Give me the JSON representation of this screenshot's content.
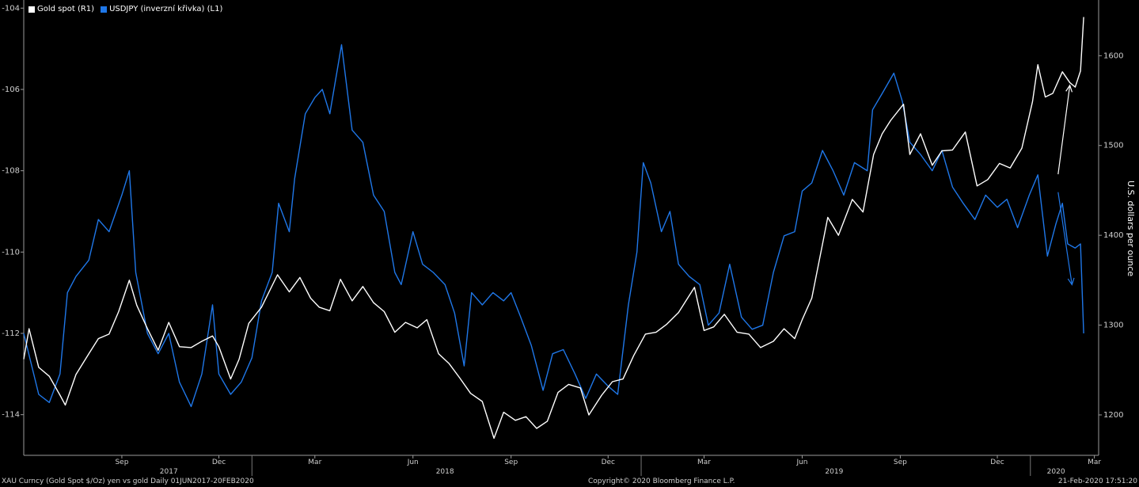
{
  "chart_data": {
    "type": "line",
    "title": "",
    "legend": [
      {
        "name": "Gold spot (R1)",
        "color": "#ffffff"
      },
      {
        "name": "USDJPY (inverzní křivka) (L1)",
        "color": "#1f77e8"
      }
    ],
    "left_axis": {
      "ticks": [
        -104,
        -106,
        -108,
        -110,
        -112,
        -114
      ],
      "tick_labels": [
        "-104",
        "-106",
        "-108",
        "-110",
        "-112",
        "-114"
      ],
      "ylim": [
        -115,
        -103.8
      ]
    },
    "right_axis": {
      "label": "U.S. dollars per ounce",
      "ticks": [
        1200,
        1300,
        1400,
        1500,
        1600
      ],
      "ylim": [
        1155,
        1662
      ]
    },
    "x_axis": {
      "month_ticks": [
        "Sep",
        "Dec",
        "Mar",
        "Jun",
        "Sep",
        "Dec",
        "Mar",
        "Jun",
        "Sep",
        "Dec",
        "Mar"
      ],
      "month_dates": [
        "2017-09-01",
        "2017-12-01",
        "2018-03-01",
        "2018-06-01",
        "2018-09-01",
        "2018-12-01",
        "2019-03-01",
        "2019-06-01",
        "2019-09-01",
        "2019-12-01",
        "2020-03-01"
      ],
      "year_labels": [
        "2017",
        "2018",
        "2019",
        "2020"
      ],
      "year_dates": [
        "2017-10-15",
        "2018-07-01",
        "2019-07-01",
        "2020-01-25"
      ],
      "start": "2017-06-01",
      "end": "2020-03-05"
    },
    "series": [
      {
        "name": "USDJPY (inverzní křivka) (L1)",
        "axis": "left",
        "color": "#1f77e8",
        "points": [
          [
            "2017-06-01",
            -112.0
          ],
          [
            "2017-06-15",
            -113.5
          ],
          [
            "2017-06-25",
            -113.7
          ],
          [
            "2017-07-05",
            -113.0
          ],
          [
            "2017-07-12",
            -111.0
          ],
          [
            "2017-07-20",
            -110.6
          ],
          [
            "2017-08-01",
            -110.2
          ],
          [
            "2017-08-10",
            -109.2
          ],
          [
            "2017-08-20",
            -109.5
          ],
          [
            "2017-09-01",
            -108.6
          ],
          [
            "2017-09-08",
            -108.0
          ],
          [
            "2017-09-14",
            -110.5
          ],
          [
            "2017-09-25",
            -112.0
          ],
          [
            "2017-10-05",
            -112.5
          ],
          [
            "2017-10-15",
            -112.0
          ],
          [
            "2017-10-25",
            -113.2
          ],
          [
            "2017-11-05",
            -113.8
          ],
          [
            "2017-11-15",
            -113.0
          ],
          [
            "2017-11-25",
            -111.3
          ],
          [
            "2017-12-01",
            -113.0
          ],
          [
            "2017-12-12",
            -113.5
          ],
          [
            "2017-12-22",
            -113.2
          ],
          [
            "2018-01-01",
            -112.6
          ],
          [
            "2018-01-10",
            -111.2
          ],
          [
            "2018-01-20",
            -110.5
          ],
          [
            "2018-01-26",
            -108.8
          ],
          [
            "2018-02-05",
            -109.5
          ],
          [
            "2018-02-10",
            -108.2
          ],
          [
            "2018-02-20",
            -106.6
          ],
          [
            "2018-03-01",
            -106.2
          ],
          [
            "2018-03-08",
            -106.0
          ],
          [
            "2018-03-15",
            -106.6
          ],
          [
            "2018-03-26",
            -104.9
          ],
          [
            "2018-04-05",
            -107.0
          ],
          [
            "2018-04-15",
            -107.3
          ],
          [
            "2018-04-25",
            -108.6
          ],
          [
            "2018-05-05",
            -109.0
          ],
          [
            "2018-05-15",
            -110.5
          ],
          [
            "2018-05-21",
            -110.8
          ],
          [
            "2018-06-01",
            -109.5
          ],
          [
            "2018-06-10",
            -110.3
          ],
          [
            "2018-06-20",
            -110.5
          ],
          [
            "2018-07-01",
            -110.8
          ],
          [
            "2018-07-10",
            -111.5
          ],
          [
            "2018-07-19",
            -112.8
          ],
          [
            "2018-07-26",
            -111.0
          ],
          [
            "2018-08-05",
            -111.3
          ],
          [
            "2018-08-15",
            -111.0
          ],
          [
            "2018-08-25",
            -111.2
          ],
          [
            "2018-09-01",
            -111.0
          ],
          [
            "2018-09-10",
            -111.6
          ],
          [
            "2018-09-20",
            -112.3
          ],
          [
            "2018-10-01",
            -113.4
          ],
          [
            "2018-10-10",
            -112.5
          ],
          [
            "2018-10-20",
            -112.4
          ],
          [
            "2018-10-31",
            -113.0
          ],
          [
            "2018-11-10",
            -113.6
          ],
          [
            "2018-11-20",
            -113.0
          ],
          [
            "2018-12-01",
            -113.3
          ],
          [
            "2018-12-10",
            -113.5
          ],
          [
            "2018-12-20",
            -111.3
          ],
          [
            "2018-12-28",
            -110.0
          ],
          [
            "2019-01-03",
            -107.8
          ],
          [
            "2019-01-10",
            -108.3
          ],
          [
            "2019-01-20",
            -109.5
          ],
          [
            "2019-01-28",
            -109.0
          ],
          [
            "2019-02-05",
            -110.3
          ],
          [
            "2019-02-15",
            -110.6
          ],
          [
            "2019-02-25",
            -110.8
          ],
          [
            "2019-03-05",
            -111.8
          ],
          [
            "2019-03-15",
            -111.5
          ],
          [
            "2019-03-25",
            -110.3
          ],
          [
            "2019-04-05",
            -111.6
          ],
          [
            "2019-04-15",
            -111.9
          ],
          [
            "2019-04-25",
            -111.8
          ],
          [
            "2019-05-05",
            -110.5
          ],
          [
            "2019-05-15",
            -109.6
          ],
          [
            "2019-05-25",
            -109.5
          ],
          [
            "2019-06-01",
            -108.5
          ],
          [
            "2019-06-10",
            -108.3
          ],
          [
            "2019-06-20",
            -107.5
          ],
          [
            "2019-06-30",
            -108.0
          ],
          [
            "2019-07-10",
            -108.6
          ],
          [
            "2019-07-20",
            -107.8
          ],
          [
            "2019-08-01",
            -108.0
          ],
          [
            "2019-08-06",
            -106.5
          ],
          [
            "2019-08-15",
            -106.1
          ],
          [
            "2019-08-26",
            -105.6
          ],
          [
            "2019-09-03",
            -106.3
          ],
          [
            "2019-09-10",
            -107.3
          ],
          [
            "2019-09-20",
            -107.6
          ],
          [
            "2019-10-01",
            -108.0
          ],
          [
            "2019-10-10",
            -107.5
          ],
          [
            "2019-10-20",
            -108.4
          ],
          [
            "2019-10-30",
            -108.8
          ],
          [
            "2019-11-10",
            -109.2
          ],
          [
            "2019-11-20",
            -108.6
          ],
          [
            "2019-12-01",
            -108.9
          ],
          [
            "2019-12-10",
            -108.7
          ],
          [
            "2019-12-20",
            -109.4
          ],
          [
            "2019-12-31",
            -108.6
          ],
          [
            "2020-01-08",
            -108.1
          ],
          [
            "2020-01-17",
            -110.1
          ],
          [
            "2020-01-25",
            -109.3
          ],
          [
            "2020-01-31",
            -108.8
          ],
          [
            "2020-02-05",
            -109.8
          ],
          [
            "2020-02-12",
            -109.9
          ],
          [
            "2020-02-17",
            -109.8
          ],
          [
            "2020-02-20",
            -112.0
          ]
        ]
      },
      {
        "name": "Gold spot (R1)",
        "axis": "right",
        "color": "#ffffff",
        "points": [
          [
            "2017-06-01",
            1262
          ],
          [
            "2017-06-06",
            1296
          ],
          [
            "2017-06-15",
            1253
          ],
          [
            "2017-06-25",
            1243
          ],
          [
            "2017-07-05",
            1222
          ],
          [
            "2017-07-10",
            1211
          ],
          [
            "2017-07-20",
            1245
          ],
          [
            "2017-08-01",
            1268
          ],
          [
            "2017-08-10",
            1285
          ],
          [
            "2017-08-20",
            1290
          ],
          [
            "2017-08-29",
            1315
          ],
          [
            "2017-09-08",
            1350
          ],
          [
            "2017-09-15",
            1322
          ],
          [
            "2017-09-25",
            1296
          ],
          [
            "2017-10-05",
            1272
          ],
          [
            "2017-10-15",
            1303
          ],
          [
            "2017-10-25",
            1276
          ],
          [
            "2017-11-05",
            1275
          ],
          [
            "2017-11-15",
            1282
          ],
          [
            "2017-11-25",
            1288
          ],
          [
            "2017-12-01",
            1276
          ],
          [
            "2017-12-12",
            1240
          ],
          [
            "2017-12-20",
            1262
          ],
          [
            "2017-12-29",
            1302
          ],
          [
            "2018-01-10",
            1320
          ],
          [
            "2018-01-25",
            1356
          ],
          [
            "2018-02-05",
            1337
          ],
          [
            "2018-02-15",
            1353
          ],
          [
            "2018-02-25",
            1330
          ],
          [
            "2018-03-05",
            1320
          ],
          [
            "2018-03-15",
            1316
          ],
          [
            "2018-03-25",
            1351
          ],
          [
            "2018-04-05",
            1327
          ],
          [
            "2018-04-15",
            1343
          ],
          [
            "2018-04-25",
            1325
          ],
          [
            "2018-05-05",
            1315
          ],
          [
            "2018-05-15",
            1292
          ],
          [
            "2018-05-25",
            1303
          ],
          [
            "2018-06-05",
            1297
          ],
          [
            "2018-06-14",
            1306
          ],
          [
            "2018-06-25",
            1268
          ],
          [
            "2018-07-05",
            1257
          ],
          [
            "2018-07-15",
            1241
          ],
          [
            "2018-07-25",
            1224
          ],
          [
            "2018-08-05",
            1215
          ],
          [
            "2018-08-16",
            1174
          ],
          [
            "2018-08-25",
            1203
          ],
          [
            "2018-09-05",
            1194
          ],
          [
            "2018-09-15",
            1198
          ],
          [
            "2018-09-25",
            1185
          ],
          [
            "2018-10-05",
            1193
          ],
          [
            "2018-10-15",
            1225
          ],
          [
            "2018-10-25",
            1234
          ],
          [
            "2018-11-05",
            1230
          ],
          [
            "2018-11-13",
            1200
          ],
          [
            "2018-11-25",
            1222
          ],
          [
            "2018-12-05",
            1237
          ],
          [
            "2018-12-15",
            1240
          ],
          [
            "2018-12-25",
            1266
          ],
          [
            "2019-01-05",
            1290
          ],
          [
            "2019-01-15",
            1292
          ],
          [
            "2019-01-25",
            1301
          ],
          [
            "2019-02-05",
            1314
          ],
          [
            "2019-02-20",
            1342
          ],
          [
            "2019-03-01",
            1294
          ],
          [
            "2019-03-10",
            1298
          ],
          [
            "2019-03-20",
            1312
          ],
          [
            "2019-04-01",
            1292
          ],
          [
            "2019-04-12",
            1290
          ],
          [
            "2019-04-23",
            1275
          ],
          [
            "2019-05-05",
            1282
          ],
          [
            "2019-05-15",
            1296
          ],
          [
            "2019-05-25",
            1285
          ],
          [
            "2019-06-01",
            1306
          ],
          [
            "2019-06-10",
            1330
          ],
          [
            "2019-06-20",
            1390
          ],
          [
            "2019-06-25",
            1420
          ],
          [
            "2019-07-05",
            1400
          ],
          [
            "2019-07-18",
            1440
          ],
          [
            "2019-07-28",
            1426
          ],
          [
            "2019-08-07",
            1490
          ],
          [
            "2019-08-15",
            1513
          ],
          [
            "2019-08-23",
            1528
          ],
          [
            "2019-09-04",
            1546
          ],
          [
            "2019-09-10",
            1490
          ],
          [
            "2019-09-20",
            1513
          ],
          [
            "2019-10-01",
            1478
          ],
          [
            "2019-10-10",
            1494
          ],
          [
            "2019-10-20",
            1495
          ],
          [
            "2019-11-01",
            1515
          ],
          [
            "2019-11-12",
            1455
          ],
          [
            "2019-11-22",
            1462
          ],
          [
            "2019-12-03",
            1480
          ],
          [
            "2019-12-13",
            1475
          ],
          [
            "2019-12-24",
            1497
          ],
          [
            "2020-01-03",
            1549
          ],
          [
            "2020-01-08",
            1590
          ],
          [
            "2020-01-15",
            1554
          ],
          [
            "2020-01-22",
            1558
          ],
          [
            "2020-01-31",
            1582
          ],
          [
            "2020-02-07",
            1570
          ],
          [
            "2020-02-12",
            1565
          ],
          [
            "2020-02-17",
            1583
          ],
          [
            "2020-02-20",
            1643
          ]
        ]
      }
    ],
    "annotations": [
      {
        "type": "arrow",
        "color": "#ffffff",
        "from": [
          "2020-01-27",
          1468
        ],
        "to": [
          "2020-02-07",
          1567
        ]
      },
      {
        "type": "arrow",
        "color": "#1f77e8",
        "from": [
          "2020-01-27",
          1448
        ],
        "to": [
          "2020-02-09",
          1345
        ]
      }
    ],
    "grid": false,
    "legend_placement": "top-left"
  },
  "footer": {
    "left": "XAU Curncy (Gold Spot  $/Oz) yen vs gold  Daily 01JUN2017-20FEB2020",
    "center": "Copyright© 2020 Bloomberg Finance L.P.",
    "right": "21-Feb-2020 17:51:20"
  }
}
